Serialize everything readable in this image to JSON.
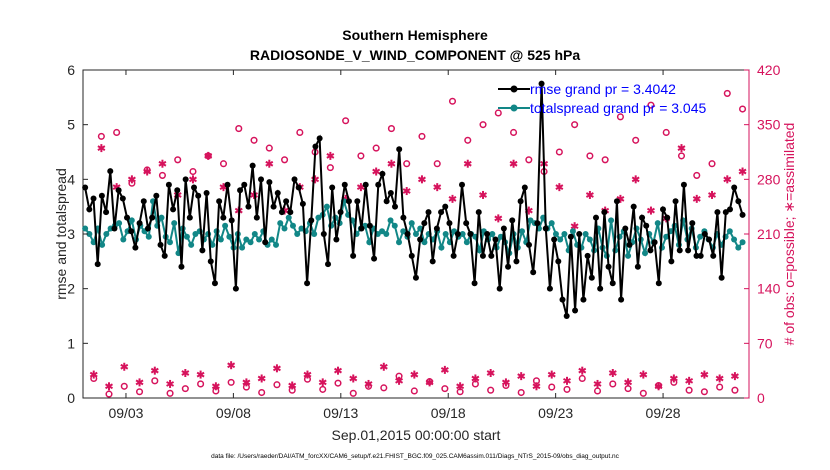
{
  "chart_data": {
    "type": "line",
    "title": "Southern Hemisphere",
    "subtitle": "RADIOSONDE_V_WIND_COMPONENT @ 525 hPa",
    "xlabel": "Sep.01,2015 00:00:00 start",
    "ylabel": "rmse and totalspread",
    "y2label": "# of obs: o=possible; ∗=assimilated",
    "footnote": "data file: /Users/raeder/DAI/ATM_forcXX/CAM6_setup/f.e21.FHIST_BGC.f09_025.CAM6assim.011/Diags_NTrS_2015-09/obs_diag_output.nc",
    "xlim": [
      1,
      32
    ],
    "ylim": [
      0,
      6
    ],
    "y2lim": [
      0,
      420
    ],
    "x_ticks": [
      3,
      8,
      13,
      18,
      23,
      28
    ],
    "x_tick_labels": [
      "09/03",
      "09/08",
      "09/13",
      "09/18",
      "09/23",
      "09/28"
    ],
    "y_ticks": [
      0,
      1,
      2,
      3,
      4,
      5,
      6
    ],
    "y2_ticks": [
      0,
      70,
      140,
      210,
      280,
      350,
      420
    ],
    "colors": {
      "rmse": "#000000",
      "spread": "#128787",
      "obs": "#d6135c",
      "legend_text": "#0000ff"
    },
    "legend_position": "top-right",
    "series": [
      {
        "name": "rmse grand pr = 3.4042",
        "axis": "left",
        "values": [
          3.85,
          3.45,
          3.65,
          2.45,
          3.7,
          3.4,
          4.15,
          3.1,
          3.8,
          3.65,
          3.3,
          3.05,
          2.75,
          3.2,
          3.6,
          3.1,
          3.3,
          3.7,
          2.8,
          2.6,
          3.9,
          3.45,
          3.8,
          2.4,
          4.0,
          3.3,
          3.85,
          3.7,
          2.7,
          3.75,
          2.5,
          2.1,
          3.6,
          3.3,
          3.9,
          3.25,
          2.0,
          3.8,
          3.9,
          3.5,
          4.25,
          3.3,
          4.0,
          2.85,
          3.95,
          3.5,
          3.75,
          3.4,
          3.6,
          3.4,
          4.0,
          3.85,
          3.55,
          2.1,
          3.25,
          4.6,
          4.75,
          3.0,
          2.45,
          3.85,
          2.9,
          3.4,
          3.9,
          3.6,
          2.6,
          3.6,
          3.1,
          3.9,
          3.15,
          2.55,
          3.9,
          4.1,
          3.6,
          3.75,
          3.5,
          4.55,
          3.3,
          3.0,
          2.6,
          2.2,
          2.9,
          3.2,
          3.4,
          2.5,
          3.1,
          3.4,
          3.5,
          3.2,
          2.6,
          3.0,
          3.9,
          3.2,
          3.0,
          2.1,
          3.4,
          2.6,
          3.0,
          2.6,
          2.9,
          2.0,
          3.1,
          2.4,
          3.25,
          2.5,
          3.6,
          3.85,
          2.8,
          2.3,
          3.2,
          5.75,
          3.1,
          2.0,
          2.9,
          2.5,
          1.8,
          1.5,
          2.95,
          1.6,
          3.0,
          1.8,
          2.6,
          2.2,
          3.3,
          2.0,
          3.4,
          2.4,
          2.1,
          3.6,
          1.8,
          3.1,
          2.8,
          3.5,
          2.4,
          3.3,
          3.15,
          2.7,
          2.85,
          2.1,
          3.45,
          3.3,
          2.5,
          3.6,
          2.7,
          3.9,
          2.7,
          3.2,
          2.6,
          2.6,
          3.0,
          2.9,
          2.6,
          3.4,
          2.2,
          3.4,
          3.45,
          3.85,
          3.6,
          3.35
        ]
      },
      {
        "name": "totalspread grand pr = 3.045",
        "axis": "left",
        "values": [
          3.1,
          3.0,
          2.85,
          3.1,
          2.8,
          3.0,
          3.1,
          3.15,
          3.2,
          2.9,
          3.05,
          3.25,
          2.9,
          3.15,
          3.05,
          2.95,
          3.6,
          3.15,
          3.3,
          2.95,
          2.85,
          3.2,
          2.65,
          3.1,
          2.95,
          2.8,
          3.0,
          3.05,
          2.9,
          3.0,
          2.8,
          3.05,
          2.9,
          3.15,
          2.95,
          2.75,
          3.0,
          2.75,
          2.9,
          2.85,
          3.0,
          2.9,
          3.05,
          2.8,
          2.9,
          2.8,
          3.2,
          3.1,
          3.3,
          3.15,
          3.0,
          3.1,
          3.05,
          3.2,
          3.0,
          3.3,
          3.35,
          3.5,
          3.15,
          3.3,
          3.2,
          3.6,
          3.35,
          3.25,
          3.0,
          3.1,
          3.15,
          2.85,
          3.1,
          3.0,
          3.05,
          3.0,
          3.25,
          3.15,
          2.85,
          3.05,
          2.95,
          3.2,
          3.0,
          3.1,
          2.85,
          3.0,
          2.9,
          3.05,
          2.75,
          3.0,
          2.85,
          3.05,
          2.95,
          3.0,
          2.85,
          3.0,
          2.95,
          2.7,
          3.05,
          2.9,
          3.0,
          2.75,
          2.95,
          2.85,
          2.65,
          3.0,
          2.75,
          3.05,
          2.85,
          3.25,
          3.2,
          3.1,
          3.3,
          3.1,
          3.2,
          3.0,
          2.9,
          3.0,
          2.7,
          3.05,
          2.8,
          2.75,
          3.0,
          2.9,
          2.7,
          3.1,
          2.75,
          2.6,
          3.25,
          2.7,
          2.95,
          3.05,
          2.6,
          2.85,
          3.1,
          2.9,
          2.65,
          3.0,
          2.85,
          3.2,
          2.75,
          2.95,
          3.05,
          3.15,
          2.8,
          3.25,
          2.9,
          3.1,
          2.75,
          2.95,
          3.05,
          2.9,
          2.75,
          3.0,
          2.8,
          2.95,
          3.05,
          2.9,
          2.75,
          2.85
        ]
      },
      {
        "name": "obs possible",
        "axis": "right",
        "marker": "circle",
        "values": [
          25,
          335,
          5,
          340,
          15,
          275,
          8,
          292,
          22,
          285,
          6,
          305,
          12,
          290,
          18,
          310,
          9,
          300,
          20,
          345,
          14,
          330,
          7,
          320,
          17,
          305,
          10,
          340,
          24,
          315,
          11,
          295,
          19,
          355,
          6,
          310,
          15,
          320,
          13,
          345,
          28,
          300,
          9,
          335,
          21,
          300,
          12,
          380,
          8,
          330,
          18,
          350,
          10,
          365,
          16,
          340,
          7,
          305,
          22,
          290,
          14,
          315,
          11,
          350,
          25,
          310,
          9,
          305,
          18,
          360,
          12,
          330,
          6,
          375,
          16,
          340,
          20,
          310,
          10,
          285,
          8,
          300,
          14,
          390,
          10,
          370
        ]
      },
      {
        "name": "obs assimilated",
        "axis": "right",
        "marker": "star",
        "values": [
          30,
          320,
          15,
          270,
          40,
          280,
          20,
          290,
          35,
          300,
          18,
          260,
          32,
          280,
          30,
          310,
          15,
          270,
          42,
          240,
          20,
          260,
          25,
          300,
          38,
          240,
          16,
          270,
          30,
          280,
          20,
          310,
          35,
          255,
          25,
          270,
          18,
          290,
          40,
          300,
          22,
          265,
          30,
          280,
          20,
          270,
          36,
          255,
          15,
          300,
          25,
          260,
          32,
          230,
          20,
          300,
          28,
          240,
          15,
          300,
          30,
          270,
          22,
          220,
          35,
          260,
          18,
          240,
          32,
          255,
          20,
          280,
          30,
          240,
          15,
          230,
          25,
          320,
          22,
          255,
          30,
          260,
          25,
          280,
          28,
          290
        ]
      }
    ]
  }
}
